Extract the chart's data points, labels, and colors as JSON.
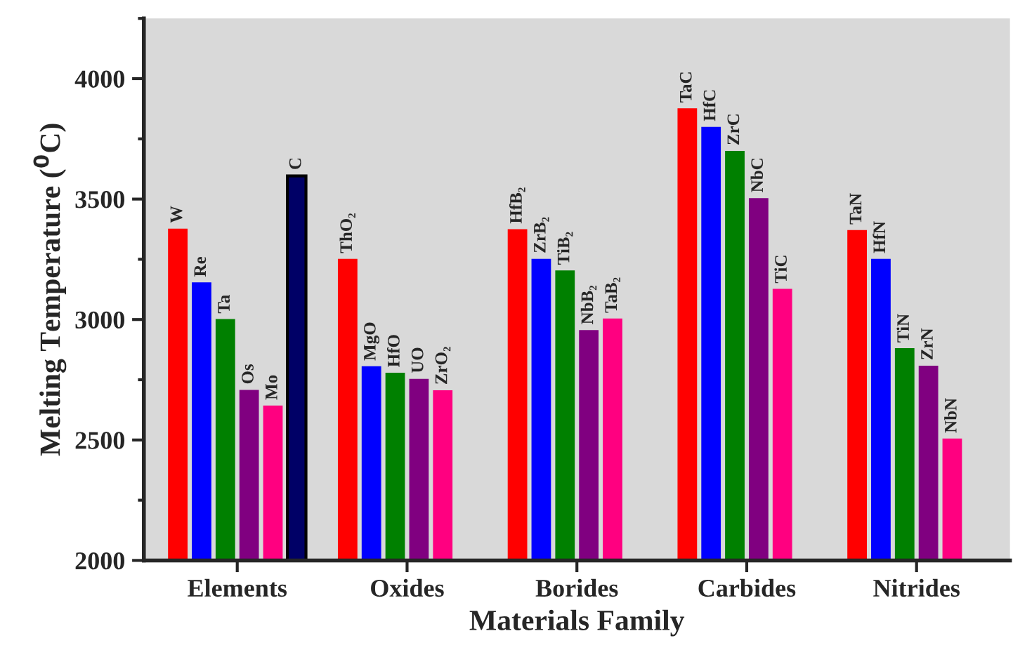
{
  "chart_data": {
    "type": "bar",
    "xlabel": "Materials Family",
    "ylabel": "Melting Temperature ($^{0}$C)",
    "categories": [
      "Elements",
      "Oxides",
      "Borides",
      "Carbides",
      "Nitrides"
    ],
    "series": [
      {
        "color": "#ff0000",
        "values": [
          3375,
          3250,
          3373,
          3875,
          3369
        ],
        "value_labels": [
          "W",
          "ThO₂",
          "HfB₂",
          "TaC",
          "TaN"
        ]
      },
      {
        "color": "#0000ff",
        "values": [
          3152,
          2804,
          3250,
          3798,
          3250
        ],
        "value_labels": [
          "Re",
          "MgO",
          "ZrB₂",
          "HfC",
          "HfN"
        ]
      },
      {
        "color": "#008000",
        "values": [
          3000,
          2777,
          3202,
          3698,
          2879
        ],
        "value_labels": [
          "Ta",
          "HfO",
          "TiB₂",
          "ZrC",
          "TiN"
        ]
      },
      {
        "color": "#800080",
        "values": [
          2706,
          2752,
          2954,
          3502,
          2806
        ],
        "value_labels": [
          "Os",
          "UO",
          "NbB₂",
          "NbC",
          "ZrN"
        ]
      },
      {
        "color": "#ff0080",
        "values": [
          2641,
          2704,
          3002,
          3125,
          2504
        ],
        "value_labels": [
          "Mo",
          "ZrO₂",
          "TaB₂",
          "TiC",
          "NbN"
        ]
      },
      {
        "color": "#000066",
        "values": [
          3596,
          null,
          null,
          null,
          null
        ],
        "value_labels": [
          "C",
          null,
          null,
          null,
          null
        ]
      }
    ],
    "ylim": [
      2000,
      4250
    ],
    "yticks": [
      2000,
      2500,
      3000,
      3500,
      4000
    ],
    "grid": false,
    "legend": false
  }
}
